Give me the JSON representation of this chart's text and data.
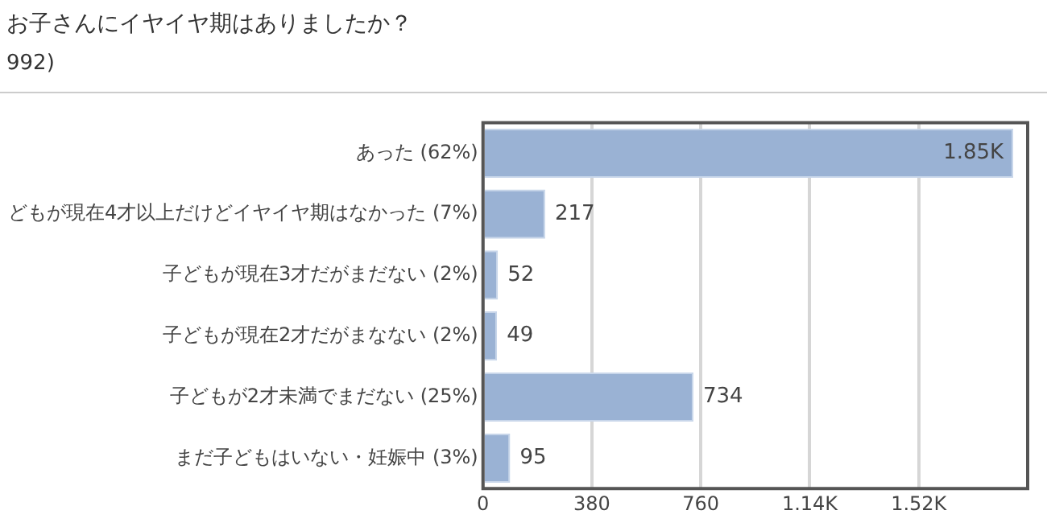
{
  "chart_data": {
    "type": "bar",
    "orientation": "horizontal",
    "title": "お子さんにイヤイヤ期はありましたか？",
    "subtitle": "992)",
    "categories": [
      "あった (62%)",
      "どもが現在4才以上だけどイヤイヤ期はなかった (7%)",
      "子どもが現在3才だがまだない (2%)",
      "子どもが現在2才だがまなない (2%)",
      "子どもが2才未満でまだない (25%)",
      "まだ子どもはいない・妊娠中 (3%)"
    ],
    "values": [
      1850,
      217,
      52,
      49,
      734,
      95
    ],
    "value_labels": [
      "1.85K",
      "217",
      "52",
      "49",
      "734",
      "95"
    ],
    "color": "#9ab2d4",
    "xlim": [
      0,
      1900
    ],
    "xticks": [
      0,
      380,
      760,
      {
        "value": 1140,
        "label": "1.14K"
      },
      {
        "value": 1520,
        "label": "1.52K"
      }
    ],
    "grid": "x"
  }
}
